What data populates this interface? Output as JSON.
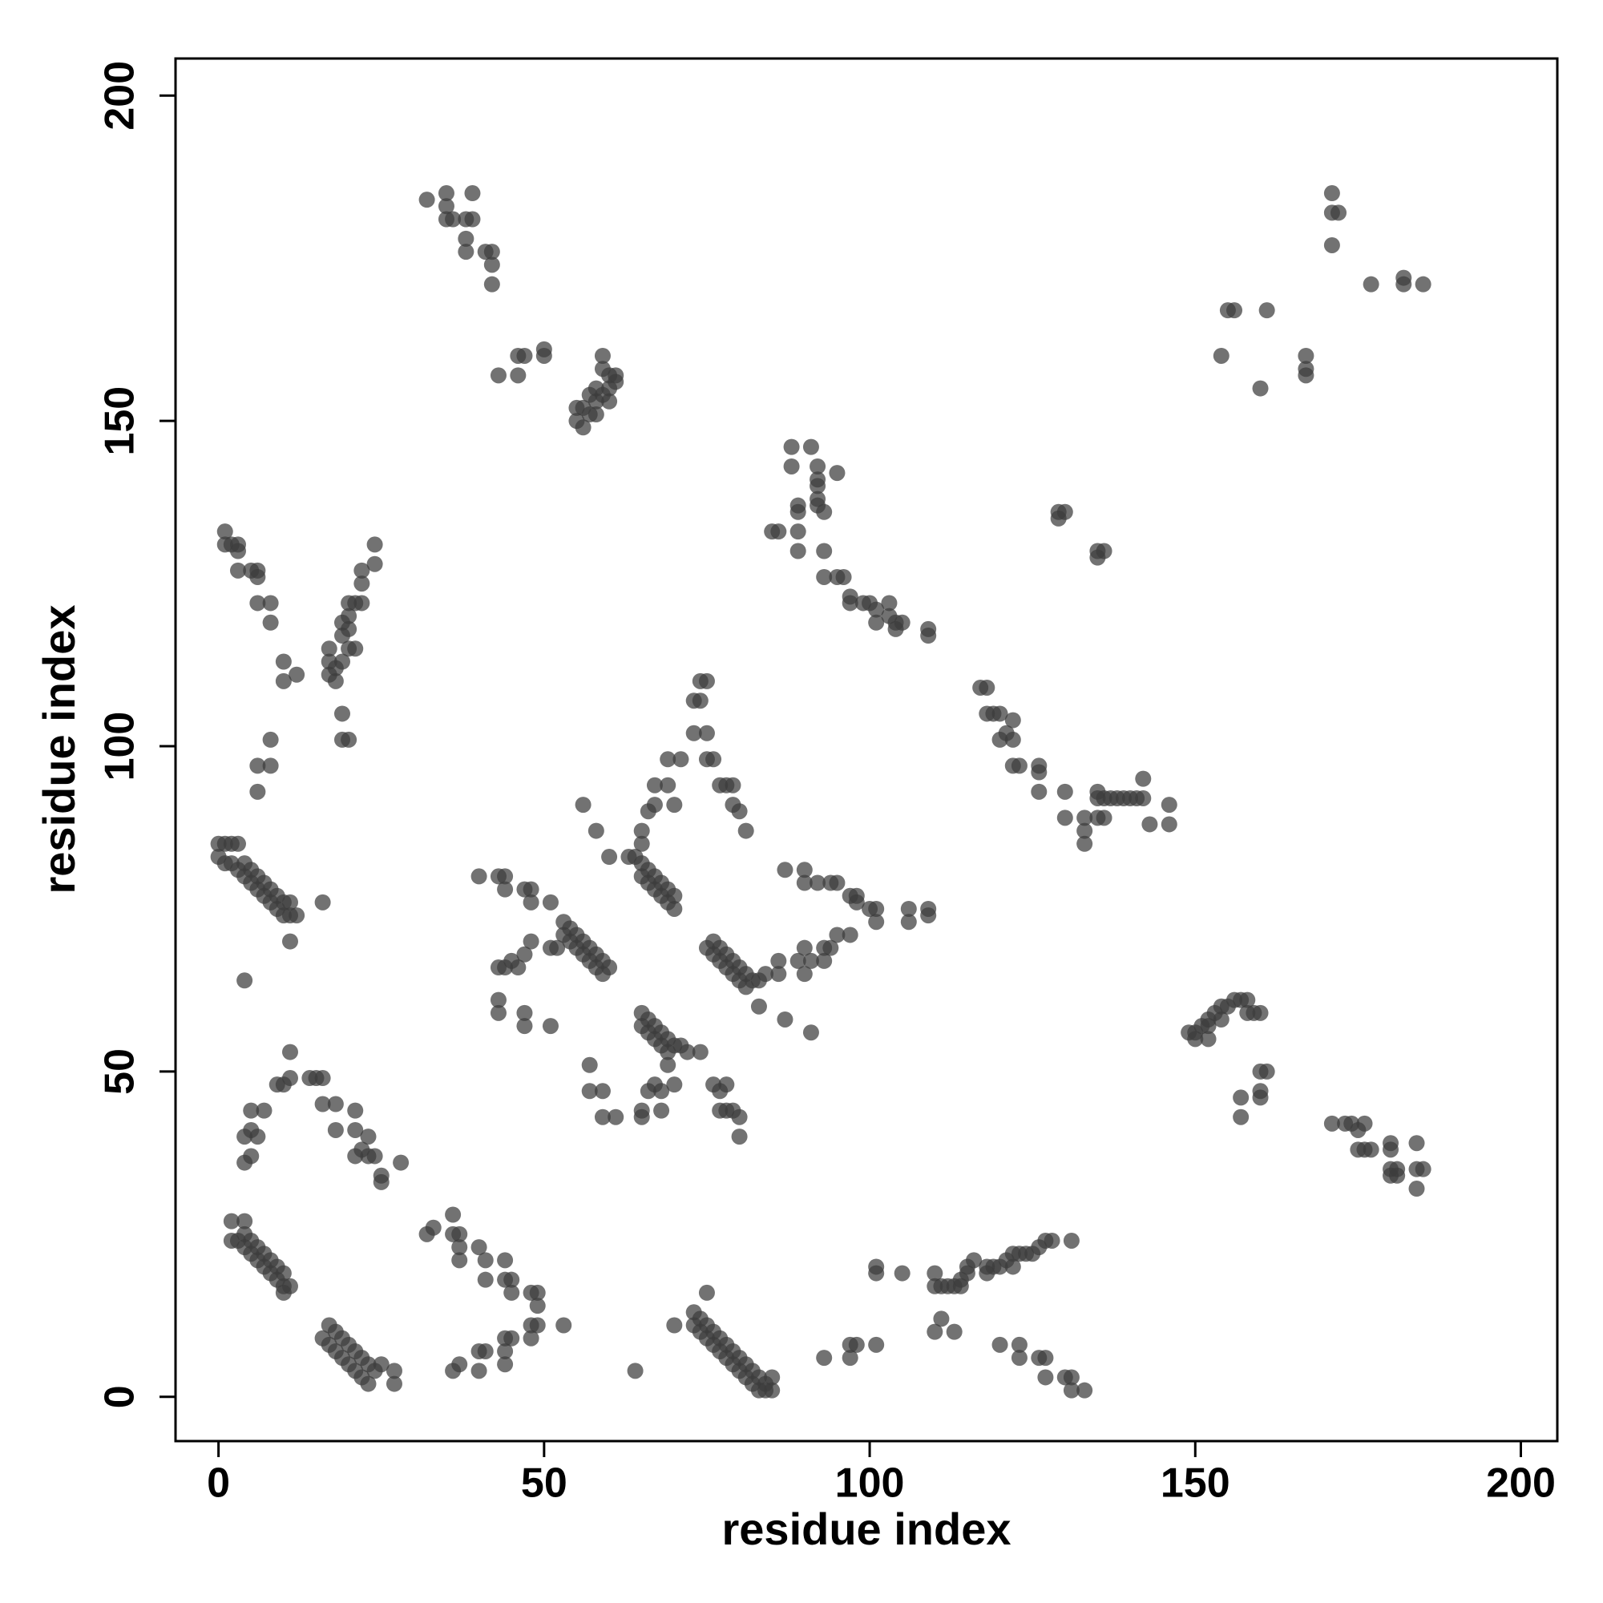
{
  "chart_data": {
    "type": "scatter",
    "x_label": "residue index",
    "y_label": "residue index",
    "color": "#3c3c3c",
    "xlim": [
      -6.6,
      205.6
    ],
    "ylim": [
      -6.8,
      205.7
    ],
    "xticks": [
      0,
      50,
      100,
      150,
      200
    ],
    "yticks": [
      0,
      50,
      100,
      150,
      200
    ],
    "x": [
      0,
      0,
      1,
      2,
      3,
      1,
      2,
      3,
      4,
      5,
      6,
      7,
      8,
      9,
      10,
      11,
      12,
      4,
      5,
      6,
      7,
      8,
      9,
      10,
      11,
      11,
      16,
      4,
      2,
      4,
      2,
      3,
      4,
      5,
      6,
      7,
      8,
      9,
      10,
      11,
      4,
      5,
      6,
      7,
      8,
      9,
      10,
      10,
      17,
      18,
      19,
      20,
      21,
      22,
      23,
      24,
      16,
      17,
      18,
      19,
      20,
      21,
      22,
      23,
      25,
      27,
      27,
      4,
      5,
      4,
      5,
      6,
      5,
      7,
      9,
      10,
      11,
      11,
      14,
      15,
      16,
      16,
      18,
      18,
      21,
      21,
      21,
      23,
      23,
      24,
      25,
      25,
      28,
      22,
      1,
      1,
      2,
      3,
      3,
      3,
      5,
      6,
      6,
      6,
      8,
      8,
      10,
      10,
      12,
      17,
      17,
      17,
      18,
      19,
      19,
      19,
      20,
      20,
      20,
      21,
      20,
      21,
      22,
      22,
      22,
      24,
      24,
      18,
      19,
      19,
      20,
      8,
      8,
      6,
      6,
      32,
      35,
      35,
      35,
      36,
      39,
      38,
      39,
      38,
      38,
      41,
      42,
      42,
      42,
      46,
      47,
      50,
      50,
      43,
      46,
      55,
      55,
      56,
      56,
      57,
      57,
      58,
      58,
      58,
      59,
      59,
      59,
      60,
      60,
      61,
      61,
      60,
      53,
      54,
      55,
      56,
      57,
      58,
      59,
      60,
      53,
      54,
      55,
      56,
      57,
      58,
      59,
      51,
      52,
      51,
      48,
      47,
      44,
      44,
      43,
      40,
      48,
      45,
      44,
      43,
      47,
      46,
      48,
      43,
      43,
      47,
      47,
      51,
      63,
      64,
      65,
      66,
      67,
      68,
      69,
      70,
      65,
      66,
      67,
      68,
      69,
      70,
      65,
      65,
      66,
      67,
      67,
      69,
      69,
      71,
      70,
      56,
      58,
      60,
      73,
      74,
      74,
      75,
      73,
      75,
      75,
      76,
      77,
      78,
      79,
      79,
      80,
      81,
      75,
      76,
      77,
      78,
      79,
      80,
      81,
      82,
      76,
      77,
      78,
      79,
      80,
      81,
      83,
      84,
      83,
      87,
      86,
      86,
      89,
      90,
      90,
      91,
      91,
      93,
      94,
      95,
      93,
      65,
      66,
      67,
      68,
      69,
      70,
      71,
      72,
      65,
      66,
      67,
      68,
      69,
      74,
      66,
      67,
      68,
      69,
      65,
      65,
      68,
      70,
      57,
      57,
      59,
      59,
      61,
      76,
      77,
      78,
      77,
      78,
      80,
      80,
      79,
      32,
      33,
      36,
      36,
      37,
      37,
      37,
      40,
      41,
      41,
      44,
      44,
      45,
      45,
      48,
      49,
      49,
      48,
      49,
      48,
      53,
      44,
      45,
      44,
      44,
      40,
      41,
      40,
      37,
      36,
      64,
      73,
      73,
      74,
      75,
      76,
      77,
      78,
      79,
      80,
      81,
      82,
      83,
      84,
      85,
      74,
      75,
      76,
      77,
      78,
      79,
      80,
      81,
      82,
      83,
      84,
      85,
      75,
      70,
      93,
      97,
      97,
      98,
      101,
      101,
      101,
      105,
      110,
      110,
      111,
      112,
      113,
      114,
      114,
      115,
      115,
      116,
      118,
      118,
      119,
      120,
      121,
      122,
      123,
      124,
      125,
      126,
      127,
      128,
      131,
      122,
      110,
      111,
      113,
      120,
      123,
      123,
      126,
      127,
      127,
      130,
      131,
      131,
      133,
      88,
      91,
      88,
      92,
      92,
      92,
      92,
      92,
      93,
      89,
      89,
      95,
      85,
      86,
      89,
      89,
      93,
      93,
      95,
      96,
      97,
      97,
      99,
      100,
      101,
      101,
      103,
      103,
      104,
      104,
      105,
      109,
      109,
      117,
      118,
      118,
      119,
      120,
      122,
      120,
      121,
      122,
      122,
      123,
      126,
      126,
      126,
      130,
      130,
      133,
      133,
      133,
      135,
      135,
      135,
      136,
      136,
      137,
      138,
      139,
      140,
      141,
      142,
      142,
      143,
      146,
      146,
      129,
      130,
      129,
      135,
      135,
      136,
      87,
      90,
      90,
      92,
      94,
      95,
      97,
      98,
      98,
      100,
      101,
      101,
      109,
      109,
      106,
      106,
      97,
      149,
      150,
      150,
      151,
      152,
      152,
      152,
      153,
      154,
      154,
      155,
      156,
      157,
      158,
      158,
      159,
      160,
      157,
      157,
      160,
      160,
      160,
      161,
      171,
      173,
      174,
      175,
      176,
      175,
      176,
      177,
      180,
      180,
      180,
      181,
      181,
      180,
      184,
      184,
      185,
      184,
      171,
      171,
      172,
      171,
      177,
      182,
      182,
      185,
      155,
      156,
      161,
      154,
      160,
      167,
      167,
      167
    ],
    "y": [
      85,
      83,
      85,
      85,
      85,
      82,
      82,
      81,
      80,
      79,
      78,
      77,
      76,
      75,
      74,
      74,
      74,
      82,
      81,
      80,
      79,
      78,
      77,
      76,
      76,
      70,
      76,
      64,
      27,
      27,
      24,
      24,
      23,
      22,
      21,
      20,
      19,
      18,
      17,
      17,
      25,
      24,
      23,
      22,
      21,
      20,
      19,
      16,
      11,
      10,
      9,
      8,
      7,
      6,
      5,
      4,
      9,
      8,
      7,
      6,
      5,
      4,
      3,
      2,
      5,
      4,
      2,
      36,
      37,
      40,
      41,
      40,
      44,
      44,
      48,
      48,
      49,
      53,
      49,
      49,
      49,
      45,
      45,
      41,
      44,
      41,
      37,
      40,
      37,
      37,
      34,
      33,
      36,
      38,
      133,
      131,
      131,
      131,
      130,
      127,
      127,
      127,
      126,
      122,
      122,
      119,
      113,
      110,
      111,
      115,
      113,
      111,
      112,
      113,
      117,
      119,
      120,
      118,
      115,
      115,
      122,
      122,
      122,
      125,
      127,
      128,
      131,
      110,
      105,
      101,
      101,
      101,
      97,
      97,
      93,
      184,
      185,
      183,
      181,
      181,
      185,
      181,
      181,
      178,
      176,
      176,
      176,
      174,
      171,
      160,
      160,
      161,
      160,
      157,
      157,
      152,
      150,
      149,
      152,
      154,
      151,
      155,
      153,
      151,
      154,
      160,
      158,
      157,
      155,
      157,
      156,
      153,
      73,
      72,
      71,
      70,
      69,
      68,
      67,
      66,
      71,
      70,
      69,
      68,
      67,
      66,
      65,
      69,
      69,
      76,
      78,
      78,
      80,
      78,
      80,
      80,
      76,
      67,
      66,
      66,
      68,
      66,
      70,
      61,
      59,
      59,
      57,
      57,
      83,
      83,
      82,
      81,
      80,
      79,
      78,
      77,
      80,
      79,
      78,
      77,
      76,
      75,
      85,
      87,
      90,
      91,
      94,
      94,
      98,
      98,
      91,
      91,
      87,
      83,
      107,
      107,
      110,
      110,
      102,
      102,
      98,
      98,
      94,
      94,
      94,
      91,
      90,
      87,
      69,
      70,
      69,
      68,
      67,
      66,
      65,
      64,
      68,
      67,
      66,
      65,
      64,
      63,
      64,
      65,
      60,
      58,
      67,
      65,
      67,
      65,
      69,
      67,
      56,
      69,
      69,
      71,
      67,
      59,
      58,
      57,
      56,
      55,
      54,
      54,
      53,
      57,
      56,
      55,
      54,
      53,
      53,
      47,
      48,
      47,
      51,
      44,
      43,
      44,
      48,
      51,
      47,
      47,
      43,
      43,
      48,
      47,
      48,
      44,
      44,
      43,
      40,
      44,
      25,
      26,
      28,
      25,
      25,
      23,
      21,
      23,
      21,
      18,
      21,
      18,
      18,
      16,
      16,
      16,
      14,
      11,
      11,
      9,
      11,
      9,
      9,
      7,
      5,
      7,
      7,
      4,
      5,
      4,
      4,
      13,
      11,
      12,
      11,
      10,
      9,
      8,
      7,
      6,
      5,
      4,
      3,
      2,
      1,
      10,
      9,
      8,
      7,
      6,
      5,
      4,
      3,
      2,
      1,
      1,
      3,
      16,
      11,
      6,
      6,
      8,
      8,
      8,
      19,
      20,
      19,
      19,
      17,
      17,
      17,
      17,
      18,
      17,
      19,
      20,
      21,
      19,
      20,
      20,
      20,
      21,
      22,
      22,
      22,
      22,
      23,
      24,
      24,
      24,
      20,
      10,
      12,
      10,
      8,
      8,
      6,
      6,
      6,
      3,
      3,
      3,
      1,
      1,
      146,
      146,
      143,
      143,
      141,
      140,
      138,
      137,
      136,
      137,
      136,
      142,
      133,
      133,
      133,
      130,
      130,
      126,
      126,
      126,
      123,
      122,
      122,
      122,
      121,
      119,
      122,
      120,
      119,
      118,
      119,
      118,
      117,
      109,
      109,
      105,
      105,
      105,
      104,
      101,
      102,
      101,
      97,
      97,
      97,
      96,
      93,
      93,
      89,
      89,
      87,
      85,
      93,
      92,
      89,
      92,
      89,
      92,
      92,
      92,
      92,
      92,
      95,
      92,
      88,
      91,
      88,
      136,
      136,
      135,
      130,
      129,
      130,
      81,
      81,
      79,
      79,
      79,
      79,
      77,
      77,
      76,
      75,
      75,
      73,
      75,
      74,
      75,
      73,
      71,
      56,
      56,
      55,
      57,
      58,
      57,
      55,
      59,
      60,
      58,
      60,
      61,
      61,
      61,
      59,
      59,
      59,
      46,
      43,
      47,
      46,
      50,
      50,
      42,
      42,
      42,
      41,
      42,
      38,
      38,
      38,
      39,
      38,
      35,
      35,
      34,
      34,
      39,
      35,
      35,
      32,
      185,
      182,
      182,
      177,
      171,
      171,
      172,
      171,
      167,
      167,
      167,
      160,
      155,
      160,
      158,
      157
    ]
  }
}
